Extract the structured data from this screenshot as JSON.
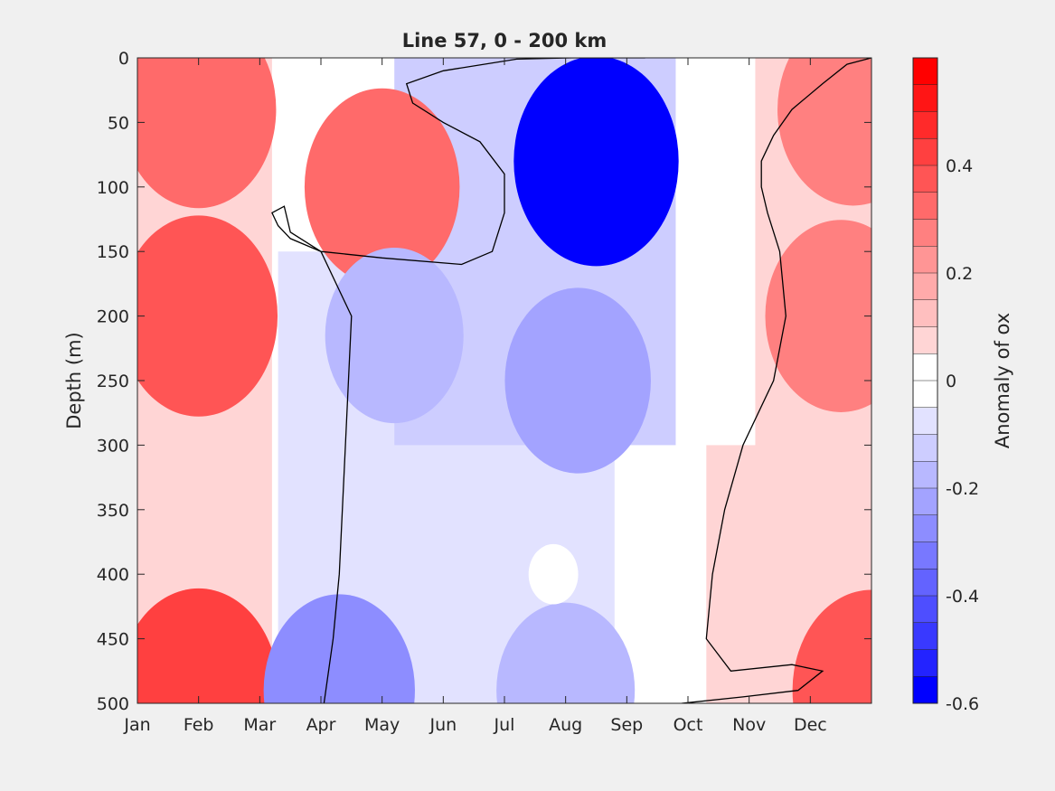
{
  "chart_data": {
    "type": "heatmap",
    "subtype": "filled-contour",
    "title": "Line 57, 0 - 200 km",
    "xlabel": "",
    "ylabel": "Depth (m)",
    "x_tick_labels": [
      "Jan",
      "Feb",
      "Mar",
      "Apr",
      "May",
      "Jun",
      "Jul",
      "Aug",
      "Sep",
      "Oct",
      "Nov",
      "Dec"
    ],
    "y_ticks": [
      0,
      50,
      100,
      150,
      200,
      250,
      300,
      350,
      400,
      450,
      500
    ],
    "y_reversed": true,
    "xlim_months": [
      1,
      13
    ],
    "ylim": [
      0,
      500
    ],
    "grid": false,
    "colorbar": {
      "label": "Anomaly of ox",
      "range": [
        -0.6,
        0.6
      ],
      "ticks": [
        0.4,
        0.2,
        0,
        -0.2,
        -0.4,
        -0.6
      ],
      "tick_labels": [
        "0.4",
        "0.2",
        "0",
        "-0.2",
        "-0.4",
        "-0.6"
      ],
      "levels": [
        {
          "from": 0.55,
          "to": 0.6,
          "color": "#ff0000"
        },
        {
          "from": 0.5,
          "to": 0.55,
          "color": "#ff1515"
        },
        {
          "from": 0.45,
          "to": 0.5,
          "color": "#ff2a2a"
        },
        {
          "from": 0.4,
          "to": 0.45,
          "color": "#ff4040"
        },
        {
          "from": 0.35,
          "to": 0.4,
          "color": "#ff5555"
        },
        {
          "from": 0.3,
          "to": 0.35,
          "color": "#ff6a6a"
        },
        {
          "from": 0.25,
          "to": 0.3,
          "color": "#ff8080"
        },
        {
          "from": 0.2,
          "to": 0.25,
          "color": "#ff9595"
        },
        {
          "from": 0.15,
          "to": 0.2,
          "color": "#ffaaaa"
        },
        {
          "from": 0.1,
          "to": 0.15,
          "color": "#ffbfbf"
        },
        {
          "from": 0.05,
          "to": 0.1,
          "color": "#ffd5d5"
        },
        {
          "from": 0.0,
          "to": 0.05,
          "color": "#ffffff"
        },
        {
          "from": -0.05,
          "to": 0.0,
          "color": "#ffffff"
        },
        {
          "from": -0.1,
          "to": -0.05,
          "color": "#e2e2ff"
        },
        {
          "from": -0.15,
          "to": -0.1,
          "color": "#cdcdff"
        },
        {
          "from": -0.2,
          "to": -0.15,
          "color": "#b8b8ff"
        },
        {
          "from": -0.25,
          "to": -0.2,
          "color": "#a3a3ff"
        },
        {
          "from": -0.3,
          "to": -0.25,
          "color": "#8d8dff"
        },
        {
          "from": -0.35,
          "to": -0.3,
          "color": "#7878ff"
        },
        {
          "from": -0.4,
          "to": -0.35,
          "color": "#6363ff"
        },
        {
          "from": -0.45,
          "to": -0.4,
          "color": "#4e4eff"
        },
        {
          "from": -0.5,
          "to": -0.45,
          "color": "#3939ff"
        },
        {
          "from": -0.55,
          "to": -0.5,
          "color": "#2323ff"
        },
        {
          "from": -0.6,
          "to": -0.55,
          "color": "#0000ff"
        }
      ]
    },
    "features": [
      {
        "month": 2.0,
        "depth": 40,
        "value": 0.35
      },
      {
        "month": 5.0,
        "depth": 100,
        "value": 0.33
      },
      {
        "month": 2.0,
        "depth": 200,
        "value": 0.4
      },
      {
        "month": 2.0,
        "depth": 490,
        "value": 0.45
      },
      {
        "month": 8.5,
        "depth": 80,
        "value": -0.6
      },
      {
        "month": 8.2,
        "depth": 250,
        "value": -0.25
      },
      {
        "month": 5.2,
        "depth": 215,
        "value": -0.2
      },
      {
        "month": 4.3,
        "depth": 490,
        "value": -0.28
      },
      {
        "month": 8.0,
        "depth": 490,
        "value": -0.2
      },
      {
        "month": 12.7,
        "depth": 40,
        "value": 0.32
      },
      {
        "month": 12.5,
        "depth": 200,
        "value": 0.28
      },
      {
        "month": 13.0,
        "depth": 490,
        "value": 0.4
      },
      {
        "month": 7.8,
        "depth": 400,
        "value": 0.0
      }
    ],
    "zero_contour": true
  }
}
